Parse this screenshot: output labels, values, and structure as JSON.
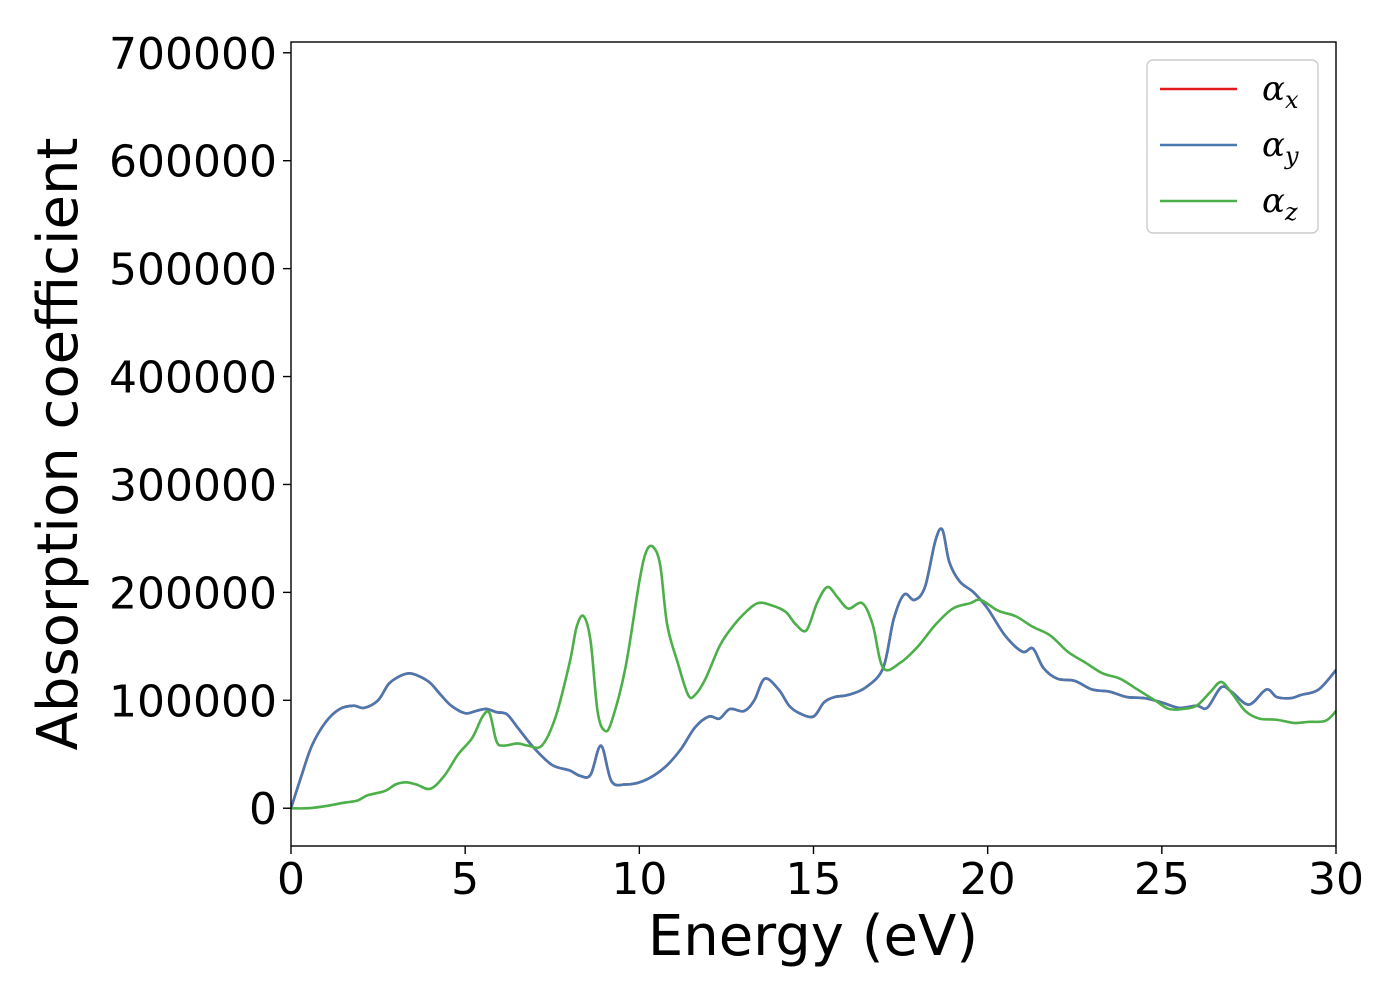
{
  "chart_data": {
    "type": "line",
    "title": "",
    "xlabel": "Energy (eV)",
    "ylabel": "Absorption coefficient",
    "xlim": [
      0,
      30
    ],
    "ylim": [
      -35000,
      710000
    ],
    "x_ticks": [
      0,
      5,
      10,
      15,
      20,
      25,
      30
    ],
    "y_ticks": [
      0,
      100000,
      200000,
      300000,
      400000,
      500000,
      600000,
      700000
    ],
    "grid": false,
    "legend_position": "top-right",
    "series": [
      {
        "name": "α",
        "subscript": "x",
        "color": "#e41a1c",
        "x": [
          0,
          0.3,
          0.6,
          1.0,
          1.4,
          1.8,
          2.1,
          2.5,
          2.8,
          3.1,
          3.4,
          3.7,
          4.0,
          4.3,
          4.6,
          5.0,
          5.3,
          5.6,
          5.9,
          6.2,
          6.5,
          7.0,
          7.5,
          8.0,
          8.3,
          8.6,
          8.9,
          9.2,
          9.6,
          10.0,
          10.4,
          10.8,
          11.2,
          11.6,
          12.0,
          12.3,
          12.6,
          13.0,
          13.3,
          13.6,
          14.0,
          14.3,
          14.6,
          15.0,
          15.3,
          15.6,
          16.0,
          16.5,
          17.0,
          17.3,
          17.6,
          17.9,
          18.2,
          18.5,
          18.7,
          18.9,
          19.2,
          19.6,
          20.0,
          20.5,
          21.0,
          21.3,
          21.6,
          22.0,
          22.5,
          23.0,
          23.5,
          24.0,
          24.5,
          25.0,
          25.5,
          26.0,
          26.3,
          26.7,
          27.0,
          27.5,
          28.0,
          28.3,
          28.7,
          29.0,
          29.5,
          30.0
        ],
        "y": [
          0,
          30000,
          58000,
          80000,
          92000,
          95000,
          93000,
          100000,
          115000,
          122000,
          125000,
          122000,
          116000,
          105000,
          95000,
          88000,
          90000,
          92000,
          89000,
          87000,
          75000,
          55000,
          40000,
          35000,
          30000,
          31000,
          58000,
          25000,
          22000,
          24000,
          30000,
          40000,
          55000,
          75000,
          85000,
          83000,
          92000,
          90000,
          100000,
          120000,
          110000,
          95000,
          88000,
          85000,
          98000,
          103000,
          105000,
          112000,
          130000,
          175000,
          198000,
          193000,
          205000,
          248000,
          258000,
          228000,
          210000,
          200000,
          185000,
          160000,
          145000,
          148000,
          130000,
          120000,
          118000,
          110000,
          108000,
          103000,
          102000,
          98000,
          93000,
          95000,
          93000,
          112000,
          108000,
          96000,
          110000,
          103000,
          102000,
          105000,
          110000,
          128000
        ]
      },
      {
        "name": "α",
        "subscript": "y",
        "color": "#4a78b0",
        "x": [
          0,
          0.3,
          0.6,
          1.0,
          1.4,
          1.8,
          2.1,
          2.5,
          2.8,
          3.1,
          3.4,
          3.7,
          4.0,
          4.3,
          4.6,
          5.0,
          5.3,
          5.6,
          5.9,
          6.2,
          6.5,
          7.0,
          7.5,
          8.0,
          8.3,
          8.6,
          8.9,
          9.2,
          9.6,
          10.0,
          10.4,
          10.8,
          11.2,
          11.6,
          12.0,
          12.3,
          12.6,
          13.0,
          13.3,
          13.6,
          14.0,
          14.3,
          14.6,
          15.0,
          15.3,
          15.6,
          16.0,
          16.5,
          17.0,
          17.3,
          17.6,
          17.9,
          18.2,
          18.5,
          18.7,
          18.9,
          19.2,
          19.6,
          20.0,
          20.5,
          21.0,
          21.3,
          21.6,
          22.0,
          22.5,
          23.0,
          23.5,
          24.0,
          24.5,
          25.0,
          25.5,
          26.0,
          26.3,
          26.7,
          27.0,
          27.5,
          28.0,
          28.3,
          28.7,
          29.0,
          29.5,
          30.0
        ],
        "y": [
          0,
          30000,
          58000,
          80000,
          92000,
          95000,
          93000,
          100000,
          115000,
          122000,
          125000,
          122000,
          116000,
          105000,
          95000,
          88000,
          90000,
          92000,
          89000,
          87000,
          75000,
          55000,
          40000,
          35000,
          30000,
          31000,
          58000,
          25000,
          22000,
          24000,
          30000,
          40000,
          55000,
          75000,
          85000,
          83000,
          92000,
          90000,
          100000,
          120000,
          110000,
          95000,
          88000,
          85000,
          98000,
          103000,
          105000,
          112000,
          130000,
          175000,
          198000,
          193000,
          205000,
          248000,
          258000,
          228000,
          210000,
          200000,
          185000,
          160000,
          145000,
          148000,
          130000,
          120000,
          118000,
          110000,
          108000,
          103000,
          102000,
          98000,
          93000,
          95000,
          93000,
          112000,
          108000,
          96000,
          110000,
          103000,
          102000,
          105000,
          110000,
          128000
        ]
      },
      {
        "name": "α",
        "subscript": "z",
        "color": "#4daf4a",
        "x": [
          0,
          0.5,
          1.0,
          1.5,
          1.9,
          2.2,
          2.7,
          3.0,
          3.3,
          3.6,
          4.0,
          4.4,
          4.8,
          5.2,
          5.5,
          5.7,
          5.9,
          6.1,
          6.5,
          6.8,
          7.2,
          7.6,
          8.0,
          8.2,
          8.4,
          8.6,
          8.8,
          9.0,
          9.2,
          9.6,
          10.0,
          10.2,
          10.4,
          10.6,
          10.8,
          11.1,
          11.4,
          11.6,
          11.9,
          12.3,
          12.6,
          13.0,
          13.4,
          13.8,
          14.2,
          14.5,
          14.8,
          15.1,
          15.4,
          15.7,
          16.0,
          16.4,
          16.7,
          17.0,
          17.5,
          18.0,
          18.5,
          19.0,
          19.5,
          19.8,
          20.3,
          20.8,
          21.3,
          21.8,
          22.3,
          22.8,
          23.3,
          23.8,
          24.3,
          24.8,
          25.2,
          25.6,
          26.0,
          26.4,
          26.7,
          27.0,
          27.4,
          27.8,
          28.3,
          28.8,
          29.2,
          29.7,
          30.0
        ],
        "y": [
          0,
          0,
          2000,
          5000,
          7000,
          12000,
          16000,
          22000,
          24000,
          22000,
          18000,
          30000,
          50000,
          65000,
          85000,
          88000,
          62000,
          58000,
          60000,
          58000,
          58000,
          85000,
          135000,
          168000,
          178000,
          155000,
          90000,
          72000,
          80000,
          130000,
          210000,
          238000,
          242000,
          225000,
          170000,
          135000,
          105000,
          105000,
          120000,
          150000,
          165000,
          180000,
          190000,
          188000,
          182000,
          170000,
          165000,
          190000,
          205000,
          195000,
          185000,
          190000,
          170000,
          130000,
          135000,
          150000,
          170000,
          185000,
          190000,
          193000,
          183000,
          178000,
          168000,
          160000,
          145000,
          135000,
          125000,
          120000,
          110000,
          100000,
          92000,
          92000,
          95000,
          108000,
          117000,
          107000,
          90000,
          83000,
          82000,
          79000,
          80000,
          81000,
          90000
        ]
      }
    ]
  }
}
